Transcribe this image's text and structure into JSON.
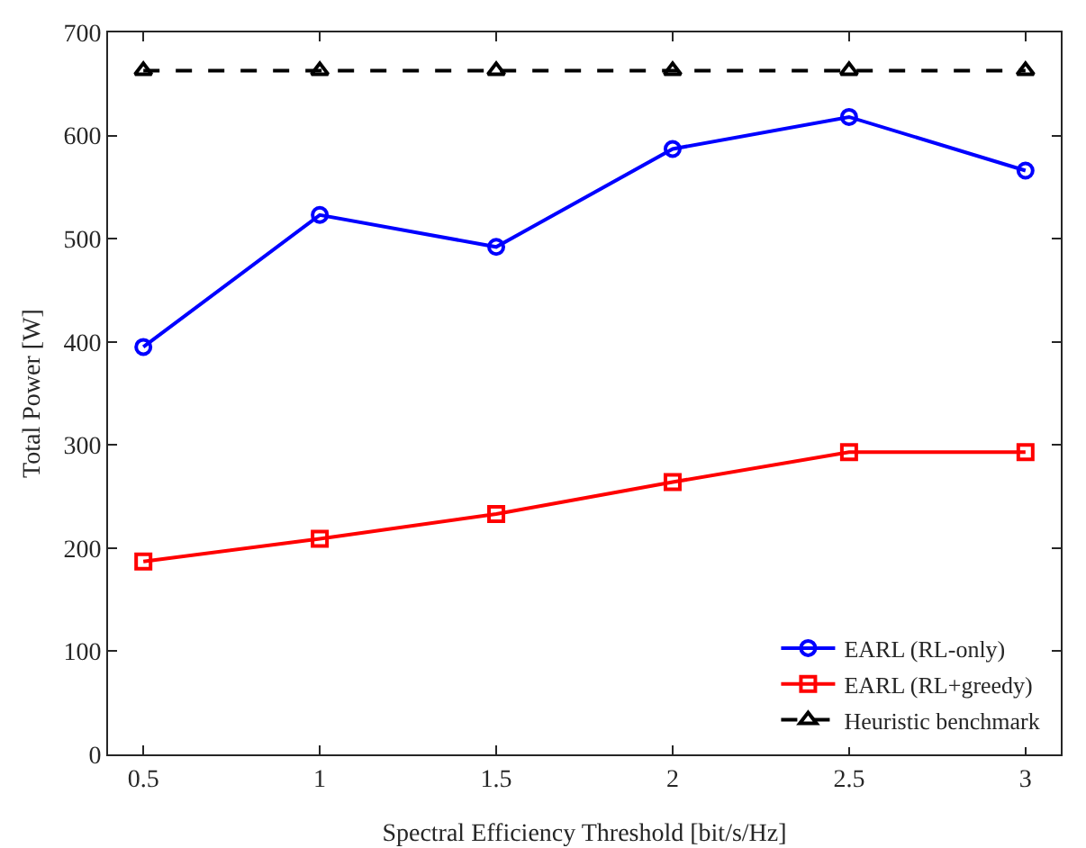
{
  "chart_data": {
    "type": "line",
    "xlabel": "Spectral Efficiency Threshold [bit/s/Hz]",
    "ylabel": "Total Power [W]",
    "x": [
      0.5,
      1,
      1.5,
      2,
      2.5,
      3
    ],
    "series": [
      {
        "name": "EARL (RL-only)",
        "color": "#0000ff",
        "marker": "circle",
        "line_style": "solid",
        "values": [
          395,
          523,
          492,
          587,
          618,
          566
        ]
      },
      {
        "name": "EARL (RL+greedy)",
        "color": "#ff0000",
        "marker": "square",
        "line_style": "solid",
        "values": [
          187,
          209,
          233,
          264,
          293,
          293
        ]
      },
      {
        "name": "Heuristic benchmark",
        "color": "#000000",
        "marker": "triangle",
        "line_style": "dashed",
        "values": [
          663,
          663,
          663,
          663,
          663,
          663
        ]
      }
    ],
    "xlim": [
      0.4,
      3.1
    ],
    "xticks": [
      0.5,
      1,
      1.5,
      2,
      2.5,
      3
    ],
    "ylim": [
      0,
      700
    ],
    "yticks": [
      0,
      100,
      200,
      300,
      400,
      500,
      600,
      700
    ],
    "grid": false,
    "legend": "bottom right"
  }
}
